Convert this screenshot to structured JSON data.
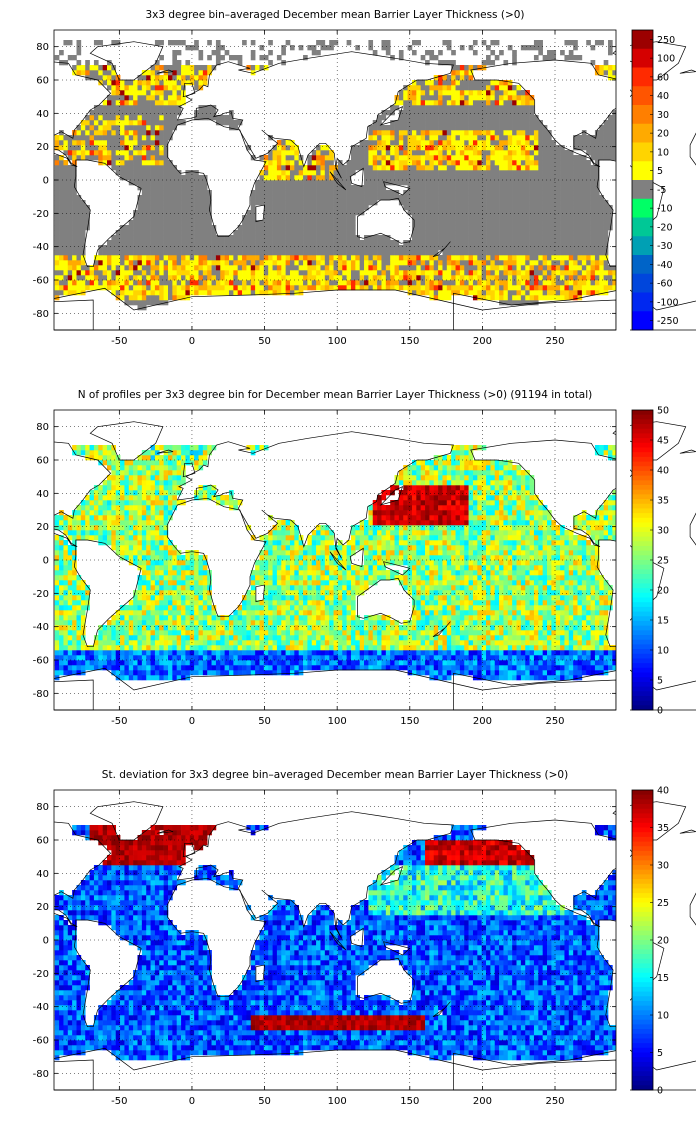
{
  "chart_data": [
    {
      "type": "heatmap",
      "title": "3x3 degree bin–averaged December mean Barrier Layer Thickness (>0)",
      "xlabel": "",
      "ylabel": "",
      "xlim": [
        -95,
        292
      ],
      "ylim": [
        -90,
        90
      ],
      "x_ticks": [
        -50,
        0,
        50,
        100,
        150,
        200,
        250
      ],
      "y_ticks": [
        -80,
        -60,
        -40,
        -20,
        0,
        20,
        40,
        60,
        80
      ],
      "colorbar": {
        "scale": "categorical",
        "labels": [
          "250",
          "100",
          "60",
          "40",
          "30",
          "20",
          "10",
          "5",
          "-5",
          "-10",
          "-20",
          "-30",
          "-40",
          "-60",
          "-100",
          "-250"
        ],
        "colors": [
          "#9c0000",
          "#d50000",
          "#ff2a00",
          "#ff5500",
          "#ff7f00",
          "#ffaa00",
          "#ffd400",
          "#ffff00",
          "#808080",
          "#00ff66",
          "#00c896",
          "#00a0b4",
          "#0064c8",
          "#0046dc",
          "#0028f0",
          "#0000ff"
        ]
      },
      "background_color": "#808080",
      "grid": true
    },
    {
      "type": "heatmap",
      "title": "N of profiles per 3x3 degree bin for December mean Barrier Layer Thickness (>0) (91194 in total)",
      "xlabel": "",
      "ylabel": "",
      "xlim": [
        -95,
        292
      ],
      "ylim": [
        -90,
        90
      ],
      "x_ticks": [
        -50,
        0,
        50,
        100,
        150,
        200,
        250
      ],
      "y_ticks": [
        -80,
        -60,
        -40,
        -20,
        0,
        20,
        40,
        60,
        80
      ],
      "colorbar": {
        "scale": "continuous",
        "range": [
          0,
          50
        ],
        "ticks": [
          0,
          5,
          10,
          15,
          20,
          25,
          30,
          35,
          40,
          45,
          50
        ],
        "colormap": "jet"
      },
      "grid": true
    },
    {
      "type": "heatmap",
      "title": "St. deviation for 3x3 degree bin–averaged December mean Barrier Layer Thickness (>0)",
      "xlabel": "",
      "ylabel": "",
      "xlim": [
        -95,
        292
      ],
      "ylim": [
        -90,
        90
      ],
      "x_ticks": [
        -50,
        0,
        50,
        100,
        150,
        200,
        250
      ],
      "y_ticks": [
        -80,
        -60,
        -40,
        -20,
        0,
        20,
        40,
        60,
        80
      ],
      "colorbar": {
        "scale": "continuous",
        "range": [
          0,
          40
        ],
        "ticks": [
          0,
          5,
          10,
          15,
          20,
          25,
          30,
          35,
          40
        ],
        "colormap": "jet"
      },
      "grid": true
    }
  ]
}
